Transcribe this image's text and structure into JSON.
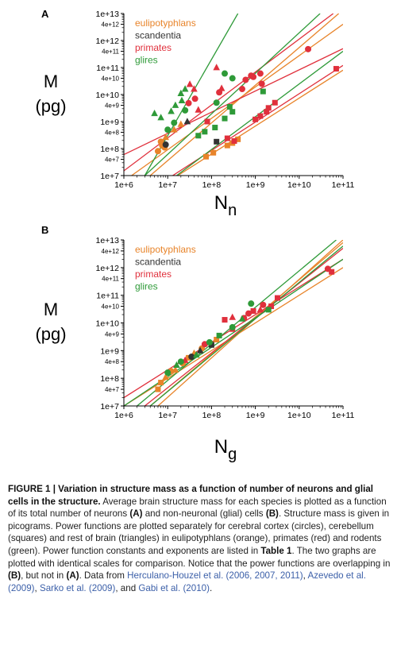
{
  "figure": {
    "caption_head": "FIGURE 1 | Variation in structure mass as a function of number of neurons and glial cells in the structure.",
    "caption_parts": [
      {
        "t": " Average brain structure mass for each species is plotted as a function of its total number of neurons "
      },
      {
        "t": "(A)",
        "b": true
      },
      {
        "t": " and non-neuronal (glial) cells "
      },
      {
        "t": "(B)",
        "b": true
      },
      {
        "t": ". Structure mass is given in picograms. Power functions are plotted separately for cerebral cortex (circles), cerebellum (squares) and rest of brain (triangles) in eulipotyphlans (orange), primates (red) and rodents (green). Power function constants and exponents are listed in "
      },
      {
        "t": "Table 1",
        "b": true
      },
      {
        "t": ". The two graphs are plotted with identical scales for comparison. Notice that the power functions are overlapping in "
      },
      {
        "t": "(B)",
        "b": true
      },
      {
        "t": ", but not in "
      },
      {
        "t": "(A)",
        "b": true
      },
      {
        "t": ". Data from "
      },
      {
        "t": "Herculano-Houzel et al. (2006, 2007, 2011)",
        "l": true
      },
      {
        "t": ", "
      },
      {
        "t": "Azevedo et al. (2009)",
        "l": true
      },
      {
        "t": ", "
      },
      {
        "t": "Sarko et al. (2009)",
        "l": true
      },
      {
        "t": ", and "
      },
      {
        "t": "Gabi et al. (2010)",
        "l": true
      },
      {
        "t": "."
      }
    ]
  },
  "chart_data": [
    {
      "panel": "A",
      "type": "scatter",
      "ylabel_lines": [
        "M",
        "(pg)"
      ],
      "xlabel_main": "N",
      "xlabel_sub": "n",
      "x_scale": "log",
      "y_scale": "log",
      "xlim": [
        1000000.0,
        100000000000.0
      ],
      "ylim": [
        10000000.0,
        10000000000000.0
      ],
      "x_ticks": [
        "1e+6",
        "1e+7",
        "1e+8",
        "1e+9",
        "1e+10",
        "1e+11"
      ],
      "y_ticks": [
        "1e+7",
        "4e+7",
        "1e+8",
        "4e+8",
        "1e+9",
        "4e+9",
        "1e+10",
        "4e+10",
        "1e+11",
        "4e+11",
        "1e+12",
        "4e+12",
        "1e+13"
      ],
      "legend": [
        {
          "name": "eulipotyphlans",
          "color": "#e8842a"
        },
        {
          "name": "scandentia",
          "color": "#333333"
        },
        {
          "name": "primates",
          "color": "#e0303c"
        },
        {
          "name": "glires",
          "color": "#2e9a38"
        }
      ],
      "points": [
        {
          "g": "eulipotyphlans",
          "m": "circle",
          "x": 6000000.0,
          "y": 80000000.0
        },
        {
          "g": "eulipotyphlans",
          "m": "circle",
          "x": 7500000.0,
          "y": 130000000.0
        },
        {
          "g": "eulipotyphlans",
          "m": "circle",
          "x": 8500000.0,
          "y": 110000000.0
        },
        {
          "g": "eulipotyphlans",
          "m": "circle",
          "x": 7000000.0,
          "y": 180000000.0
        },
        {
          "g": "eulipotyphlans",
          "m": "triangle",
          "x": 9000000.0,
          "y": 260000000.0
        },
        {
          "g": "eulipotyphlans",
          "m": "triangle",
          "x": 14000000.0,
          "y": 500000000.0
        },
        {
          "g": "eulipotyphlans",
          "m": "triangle",
          "x": 20000000.0,
          "y": 800000000.0
        },
        {
          "g": "eulipotyphlans",
          "m": "square",
          "x": 75000000.0,
          "y": 50000000.0
        },
        {
          "g": "eulipotyphlans",
          "m": "square",
          "x": 110000000.0,
          "y": 70000000.0
        },
        {
          "g": "eulipotyphlans",
          "m": "square",
          "x": 230000000.0,
          "y": 130000000.0
        },
        {
          "g": "eulipotyphlans",
          "m": "square",
          "x": 300000000.0,
          "y": 160000000.0
        },
        {
          "g": "eulipotyphlans",
          "m": "square",
          "x": 400000000.0,
          "y": 220000000.0
        },
        {
          "g": "scandentia",
          "m": "circle",
          "x": 9000000.0,
          "y": 140000000.0
        },
        {
          "g": "scandentia",
          "m": "triangle",
          "x": 28000000.0,
          "y": 1000000000.0
        },
        {
          "g": "scandentia",
          "m": "square",
          "x": 130000000.0,
          "y": 180000000.0
        },
        {
          "g": "primates",
          "m": "circle",
          "x": 30000000.0,
          "y": 4800000000.0
        },
        {
          "g": "primates",
          "m": "circle",
          "x": 42000000.0,
          "y": 7000000000.0
        },
        {
          "g": "primates",
          "m": "circle",
          "x": 150000000.0,
          "y": 12000000000.0
        },
        {
          "g": "primates",
          "m": "circle",
          "x": 600000000.0,
          "y": 35000000000.0
        },
        {
          "g": "primates",
          "m": "circle",
          "x": 800000000.0,
          "y": 50000000000.0
        },
        {
          "g": "primates",
          "m": "circle",
          "x": 900000000.0,
          "y": 45000000000.0
        },
        {
          "g": "primates",
          "m": "circle",
          "x": 1300000000.0,
          "y": 60000000000.0
        },
        {
          "g": "primates",
          "m": "circle",
          "x": 500000000.0,
          "y": 16000000000.0
        },
        {
          "g": "primates",
          "m": "circle",
          "x": 1400000000.0,
          "y": 25000000000.0
        },
        {
          "g": "primates",
          "m": "circle",
          "x": 16000000000.0,
          "y": 480000000000.0
        },
        {
          "g": "primates",
          "m": "triangle",
          "x": 130000000.0,
          "y": 100000000000.0
        },
        {
          "g": "primates",
          "m": "triangle",
          "x": 32000000.0,
          "y": 24000000000.0
        },
        {
          "g": "primates",
          "m": "triangle",
          "x": 170000000.0,
          "y": 17000000000.0
        },
        {
          "g": "primates",
          "m": "triangle",
          "x": 50000000.0,
          "y": 2700000000.0
        },
        {
          "g": "primates",
          "m": "triangle",
          "x": 40000000.0,
          "y": 16000000000.0
        },
        {
          "g": "primates",
          "m": "square",
          "x": 80000000.0,
          "y": 1000000000.0
        },
        {
          "g": "primates",
          "m": "square",
          "x": 230000000.0,
          "y": 240000000.0
        },
        {
          "g": "primates",
          "m": "square",
          "x": 330000000.0,
          "y": 190000000.0
        },
        {
          "g": "primates",
          "m": "square",
          "x": 1000000000.0,
          "y": 1200000000.0
        },
        {
          "g": "primates",
          "m": "square",
          "x": 1300000000.0,
          "y": 1600000000.0
        },
        {
          "g": "primates",
          "m": "square",
          "x": 1800000000.0,
          "y": 2300000000.0
        },
        {
          "g": "primates",
          "m": "square",
          "x": 2000000000.0,
          "y": 3200000000.0
        },
        {
          "g": "primates",
          "m": "square",
          "x": 2800000000.0,
          "y": 5000000000.0
        },
        {
          "g": "primates",
          "m": "square",
          "x": 70000000000.0,
          "y": 90000000000.0
        },
        {
          "g": "glires",
          "m": "triangle",
          "x": 5000000.0,
          "y": 2000000000.0
        },
        {
          "g": "glires",
          "m": "triangle",
          "x": 7000000.0,
          "y": 1400000000.0
        },
        {
          "g": "glires",
          "m": "triangle",
          "x": 12000000.0,
          "y": 2400000000.0
        },
        {
          "g": "glires",
          "m": "triangle",
          "x": 15000000.0,
          "y": 4000000000.0
        },
        {
          "g": "glires",
          "m": "triangle",
          "x": 20000000.0,
          "y": 11000000000.0
        },
        {
          "g": "glires",
          "m": "triangle",
          "x": 25000000.0,
          "y": 16000000000.0
        },
        {
          "g": "glires",
          "m": "triangle",
          "x": 21000000.0,
          "y": 6000000000.0
        },
        {
          "g": "glires",
          "m": "circle",
          "x": 10000000.0,
          "y": 500000000.0
        },
        {
          "g": "glires",
          "m": "circle",
          "x": 14000000.0,
          "y": 900000000.0
        },
        {
          "g": "glires",
          "m": "circle",
          "x": 25000000.0,
          "y": 2600000000.0
        },
        {
          "g": "glires",
          "m": "circle",
          "x": 200000000.0,
          "y": 60000000000.0
        },
        {
          "g": "glires",
          "m": "circle",
          "x": 130000000.0,
          "y": 5000000000.0
        },
        {
          "g": "glires",
          "m": "circle",
          "x": 300000000.0,
          "y": 40000000000.0
        },
        {
          "g": "glires",
          "m": "square",
          "x": 50000000.0,
          "y": 300000000.0
        },
        {
          "g": "glires",
          "m": "square",
          "x": 70000000.0,
          "y": 420000000.0
        },
        {
          "g": "glires",
          "m": "square",
          "x": 120000000.0,
          "y": 600000000.0
        },
        {
          "g": "glires",
          "m": "square",
          "x": 200000000.0,
          "y": 1300000000.0
        },
        {
          "g": "glires",
          "m": "square",
          "x": 300000000.0,
          "y": 2300000000.0
        },
        {
          "g": "glires",
          "m": "square",
          "x": 260000000.0,
          "y": 3500000000.0
        },
        {
          "g": "glires",
          "m": "square",
          "x": 1500000000.0,
          "y": 13000000000.0
        }
      ],
      "fit_lines": [
        {
          "g": "eulipotyphlans",
          "x": [
            1500000.0,
            100000000000.0
          ],
          "y": [
            10000000.0,
            4000000000000.0
          ]
        },
        {
          "g": "eulipotyphlans",
          "x": [
            4000000.0,
            80000000000.0
          ],
          "y": [
            10000000.0,
            10000000000000.0
          ]
        },
        {
          "g": "eulipotyphlans",
          "x": [
            17000000.0,
            100000000000.0
          ],
          "y": [
            10000000.0,
            80000000000.0
          ]
        },
        {
          "g": "primates",
          "x": [
            1000000.0,
            60000000000.0
          ],
          "y": [
            15000000.0,
            10000000000000.0
          ]
        },
        {
          "g": "primates",
          "x": [
            1000000.0,
            100000000000.0
          ],
          "y": [
            60000000.0,
            500000000000.0
          ]
        },
        {
          "g": "primates",
          "x": [
            13000000.0,
            100000000000.0
          ],
          "y": [
            10000000.0,
            120000000000.0
          ]
        },
        {
          "g": "glires",
          "x": [
            3000000.0,
            400000000.0
          ],
          "y": [
            10000000.0,
            10000000000000.0
          ]
        },
        {
          "g": "glires",
          "x": [
            3000000.0,
            30000000000.0
          ],
          "y": [
            10000000.0,
            10000000000000.0
          ]
        },
        {
          "g": "glires",
          "x": [
            16000000.0,
            100000000000.0
          ],
          "y": [
            10000000.0,
            400000000000.0
          ]
        }
      ]
    },
    {
      "panel": "B",
      "type": "scatter",
      "ylabel_lines": [
        "M",
        "(pg)"
      ],
      "xlabel_main": "N",
      "xlabel_sub": "g",
      "x_scale": "log",
      "y_scale": "log",
      "xlim": [
        1000000.0,
        100000000000.0
      ],
      "ylim": [
        10000000.0,
        10000000000000.0
      ],
      "x_ticks": [
        "1e+6",
        "1e+7",
        "1e+8",
        "1e+9",
        "1e+10",
        "1e+11"
      ],
      "y_ticks": [
        "1e+7",
        "4e+7",
        "1e+8",
        "4e+8",
        "1e+9",
        "4e+9",
        "1e+10",
        "4e+10",
        "1e+11",
        "4e+11",
        "1e+12",
        "4e+12",
        "1e+13"
      ],
      "legend": [
        {
          "name": "eulipotyphlans",
          "color": "#e8842a"
        },
        {
          "name": "scandentia",
          "color": "#333333"
        },
        {
          "name": "primates",
          "color": "#e0303c"
        },
        {
          "name": "glires",
          "color": "#2e9a38"
        }
      ],
      "points": [
        {
          "g": "eulipotyphlans",
          "m": "square",
          "x": 6000000.0,
          "y": 40000000.0
        },
        {
          "g": "eulipotyphlans",
          "m": "square",
          "x": 7000000.0,
          "y": 70000000.0
        },
        {
          "g": "eulipotyphlans",
          "m": "triangle",
          "x": 9000000.0,
          "y": 110000000.0
        },
        {
          "g": "eulipotyphlans",
          "m": "circle",
          "x": 12000000.0,
          "y": 180000000.0
        },
        {
          "g": "eulipotyphlans",
          "m": "triangle",
          "x": 15000000.0,
          "y": 200000000.0
        },
        {
          "g": "eulipotyphlans",
          "m": "circle",
          "x": 22000000.0,
          "y": 350000000.0
        },
        {
          "g": "eulipotyphlans",
          "m": "square",
          "x": 30000000.0,
          "y": 550000000.0
        },
        {
          "g": "eulipotyphlans",
          "m": "triangle",
          "x": 40000000.0,
          "y": 800000000.0
        },
        {
          "g": "eulipotyphlans",
          "m": "circle",
          "x": 60000000.0,
          "y": 1200000000.0
        },
        {
          "g": "eulipotyphlans",
          "m": "square",
          "x": 130000000.0,
          "y": 2500000000.0
        },
        {
          "g": "scandentia",
          "m": "circle",
          "x": 35000000.0,
          "y": 600000000.0
        },
        {
          "g": "scandentia",
          "m": "triangle",
          "x": 55000000.0,
          "y": 1000000000.0
        },
        {
          "g": "scandentia",
          "m": "square",
          "x": 100000000.0,
          "y": 1600000000.0
        },
        {
          "g": "primates",
          "m": "triangle",
          "x": 25000000.0,
          "y": 450000000.0
        },
        {
          "g": "primates",
          "m": "circle",
          "x": 70000000.0,
          "y": 1700000000.0
        },
        {
          "g": "primates",
          "m": "square",
          "x": 200000000.0,
          "y": 13000000000.0
        },
        {
          "g": "primates",
          "m": "square",
          "x": 300000000.0,
          "y": 6000000000.0
        },
        {
          "g": "primates",
          "m": "triangle",
          "x": 300000000.0,
          "y": 16000000000.0
        },
        {
          "g": "primates",
          "m": "circle",
          "x": 550000000.0,
          "y": 15000000000.0
        },
        {
          "g": "primates",
          "m": "circle",
          "x": 700000000.0,
          "y": 22000000000.0
        },
        {
          "g": "primates",
          "m": "square",
          "x": 900000000.0,
          "y": 27000000000.0
        },
        {
          "g": "primates",
          "m": "circle",
          "x": 1500000000.0,
          "y": 45000000000.0
        },
        {
          "g": "primates",
          "m": "triangle",
          "x": 1300000000.0,
          "y": 30000000000.0
        },
        {
          "g": "primates",
          "m": "square",
          "x": 2300000000.0,
          "y": 40000000000.0
        },
        {
          "g": "primates",
          "m": "square",
          "x": 3200000000.0,
          "y": 80000000000.0
        },
        {
          "g": "primates",
          "m": "circle",
          "x": 45000000000.0,
          "y": 900000000000.0
        },
        {
          "g": "primates",
          "m": "square",
          "x": 55000000000.0,
          "y": 700000000000.0
        },
        {
          "g": "glires",
          "m": "circle",
          "x": 10000000.0,
          "y": 160000000.0
        },
        {
          "g": "glires",
          "m": "triangle",
          "x": 16000000.0,
          "y": 300000000.0
        },
        {
          "g": "glires",
          "m": "circle",
          "x": 20000000.0,
          "y": 400000000.0
        },
        {
          "g": "glires",
          "m": "triangle",
          "x": 45000000.0,
          "y": 700000000.0
        },
        {
          "g": "glires",
          "m": "circle",
          "x": 90000000.0,
          "y": 2000000000.0
        },
        {
          "g": "glires",
          "m": "square",
          "x": 150000000.0,
          "y": 3500000000.0
        },
        {
          "g": "glires",
          "m": "circle",
          "x": 300000000.0,
          "y": 7000000000.0
        },
        {
          "g": "glires",
          "m": "triangle",
          "x": 500000000.0,
          "y": 14000000000.0
        },
        {
          "g": "glires",
          "m": "circle",
          "x": 800000000.0,
          "y": 50000000000.0
        },
        {
          "g": "glires",
          "m": "square",
          "x": 2000000000.0,
          "y": 30000000000.0
        }
      ],
      "fit_lines": [
        {
          "g": "eulipotyphlans",
          "x": [
            4000000.0,
            100000000000.0
          ],
          "y": [
            10000000.0,
            8000000000000.0
          ]
        },
        {
          "g": "eulipotyphlans",
          "x": [
            1000000.0,
            100000000000.0
          ],
          "y": [
            10000000.0,
            1000000000000.0
          ]
        },
        {
          "g": "eulipotyphlans",
          "x": [
            6000000.0,
            100000000000.0
          ],
          "y": [
            10000000.0,
            10000000000000.0
          ]
        },
        {
          "g": "primates",
          "x": [
            1000000.0,
            100000000000.0
          ],
          "y": [
            20000000.0,
            2000000000000.0
          ]
        },
        {
          "g": "primates",
          "x": [
            3000000.0,
            100000000000.0
          ],
          "y": [
            10000000.0,
            5000000000000.0
          ]
        },
        {
          "g": "glires",
          "x": [
            2000000.0,
            70000000000.0
          ],
          "y": [
            10000000.0,
            10000000000000.0
          ]
        },
        {
          "g": "glires",
          "x": [
            4000000.0,
            100000000000.0
          ],
          "y": [
            10000000.0,
            6000000000000.0
          ]
        },
        {
          "g": "glires",
          "x": [
            1000000.0,
            100000000000.0
          ],
          "y": [
            10000000.0,
            2000000000000.0
          ]
        }
      ]
    }
  ]
}
